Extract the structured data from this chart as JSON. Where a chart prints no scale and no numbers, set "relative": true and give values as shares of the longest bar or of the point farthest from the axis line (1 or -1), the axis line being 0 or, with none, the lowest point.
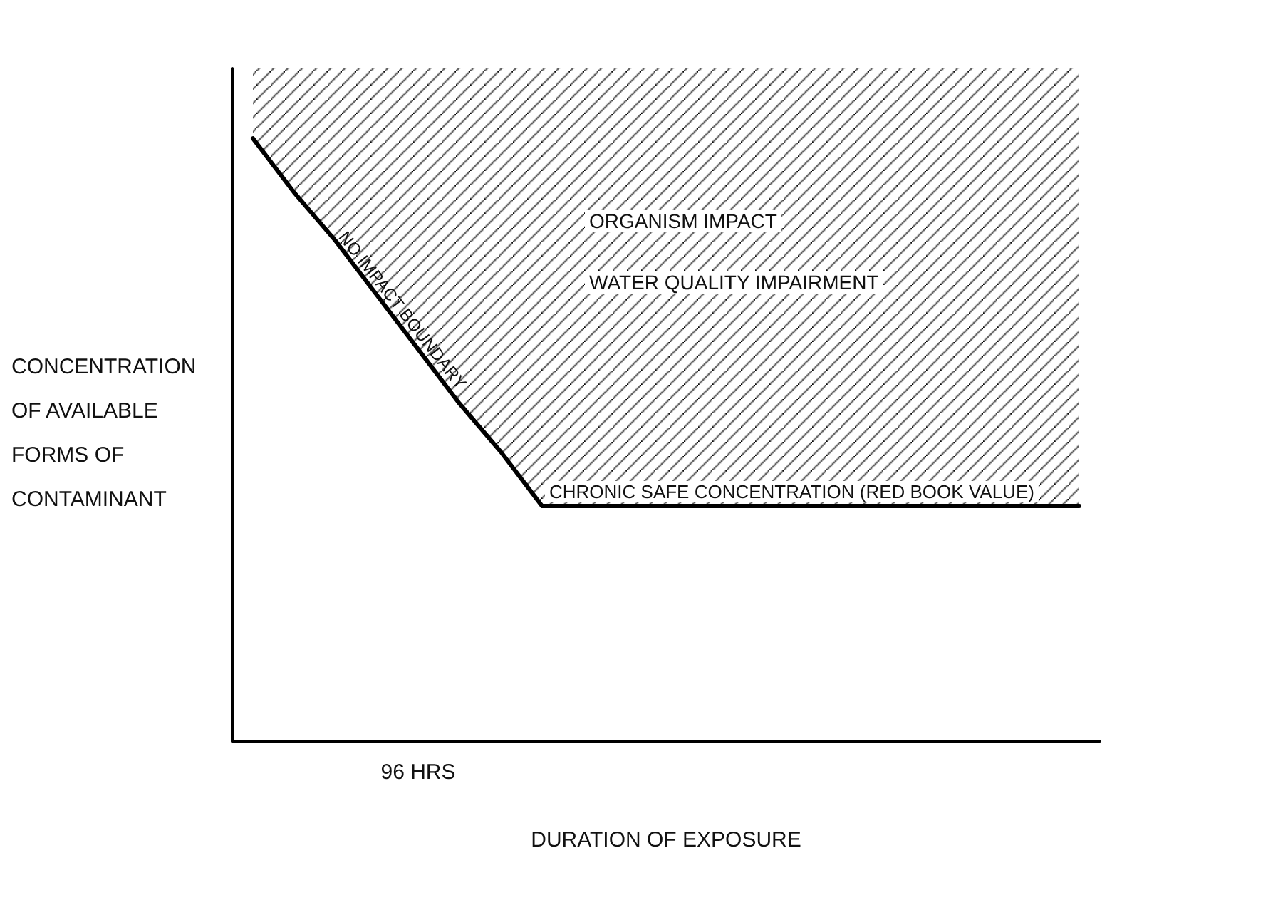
{
  "chart_data": {
    "type": "line",
    "relative": true,
    "xlabel": "DURATION OF EXPOSURE",
    "ylabel": "CONCENTRATION\nOF AVAILABLE\nFORMS OF\nCONTAMINANT",
    "categories": [
      null,
      null,
      null,
      null,
      null,
      null,
      null,
      null,
      null,
      null,
      null,
      null,
      null,
      null,
      null,
      null,
      null,
      null,
      null,
      null,
      null
    ],
    "series": [
      {
        "color": "#000000",
        "values": [
          1,
          0.91,
          0.83,
          0.74,
          0.65,
          0.56,
          0.48,
          0.39,
          0.39,
          0.39,
          0.39,
          0.39,
          0.39,
          0.39,
          0.39,
          0.39,
          0.39,
          0.39,
          0.39,
          0.39,
          0.39
        ]
      }
    ],
    "annotations": [
      "NO IMPACT BOUNDARY",
      "ORGANISM IMPACT",
      "WATER QUALITY IMPAIRMENT",
      "CHRONIC SAFE CONCENTRATION (RED BOOK VALUE)",
      "96 HRS"
    ],
    "grid": false,
    "marker": "none",
    "line_style": "solid"
  }
}
